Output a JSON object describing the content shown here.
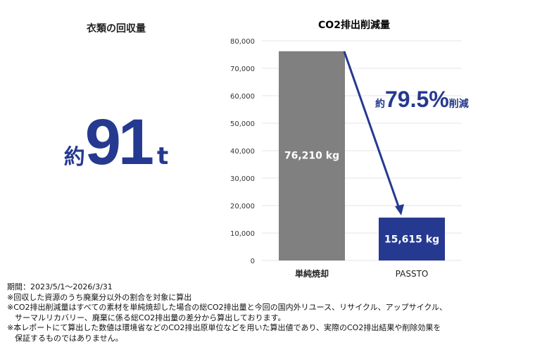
{
  "left_panel": {
    "title": "衣類の回収量",
    "prefix": "約",
    "value": "91",
    "unit": "t"
  },
  "chart_data": {
    "type": "bar",
    "title": "CO2排出削減量",
    "categories": [
      "単純焼却",
      "PASSTO"
    ],
    "values": [
      76210,
      15615
    ],
    "data_labels": [
      "76,210 kg",
      "15,615 kg"
    ],
    "bar_colors": [
      "#808080",
      "#253990"
    ],
    "ylim": [
      0,
      80000
    ],
    "yticks": [
      0,
      10000,
      20000,
      30000,
      40000,
      50000,
      60000,
      70000,
      80000
    ],
    "ytick_labels": [
      "0",
      "10,000",
      "20,000",
      "30,000",
      "40,000",
      "50,000",
      "60,000",
      "70,000",
      "80,000"
    ],
    "grid": true,
    "annotation": {
      "prefix": "約",
      "value": "79.5%",
      "suffix": "削減",
      "color": "#253990"
    }
  },
  "notes": [
    "期間：2023/5/1～2026/3/31",
    "※回収した資源のうち廃棄分以外の割合を対象に算出",
    "※CO2排出削減量はすべての素材を単純焼却した場合の総CO2排出量と今回の国内外リユース、リサイクル、アップサイクル、",
    "サーマルリカバリー、廃棄に係る総CO2排出量の差分から算出しております。",
    "※本レポートにて算出した数値は環境省などのCO2排出原単位などを用いた算出値であり、実際のCO2排出結果や削除効果を",
    "保証するものではありません。"
  ]
}
